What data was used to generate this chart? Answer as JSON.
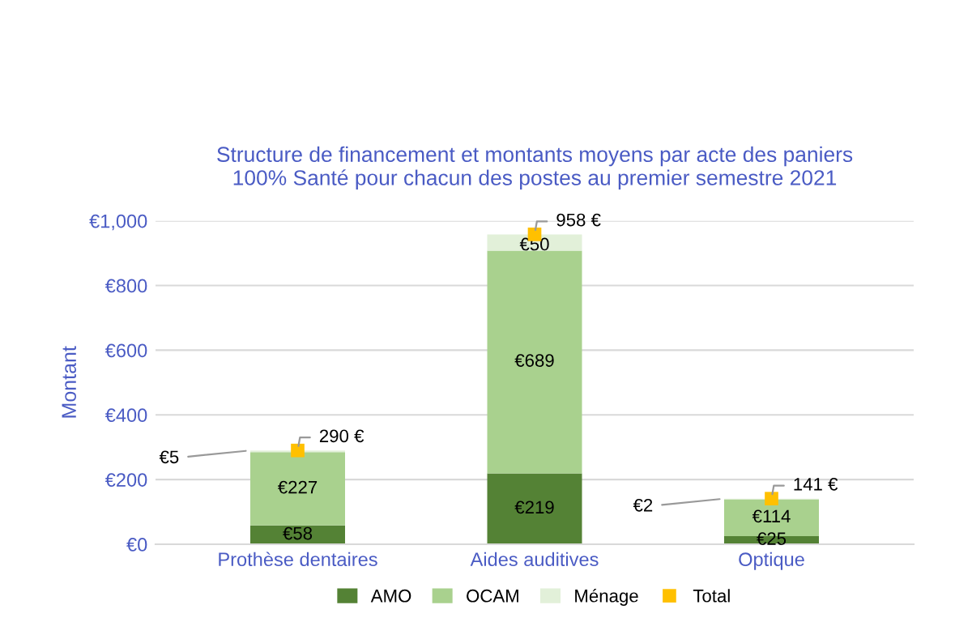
{
  "chart_data": {
    "type": "bar",
    "stacked": true,
    "title": "Structure de financement et montants moyens par acte des paniers\n100% Santé pour chacun des postes au premier semestre 2021",
    "ylabel": "Montant",
    "categories": [
      "Prothèse dentaires",
      "Aides auditives",
      "Optique"
    ],
    "series": [
      {
        "name": "AMO",
        "color": "#548235",
        "values": [
          58,
          219,
          25
        ],
        "value_labels": [
          "€58",
          "€219",
          "€25"
        ]
      },
      {
        "name": "OCAM",
        "color": "#a9d18e",
        "values": [
          227,
          689,
          114
        ],
        "value_labels": [
          "€227",
          "€689",
          "€114"
        ]
      },
      {
        "name": "Ménage",
        "color": "#e2f0d9",
        "values": [
          5,
          50,
          2
        ],
        "value_labels": [
          "€5",
          "€50",
          "€2"
        ]
      },
      {
        "name": "Total",
        "type": "scatter",
        "marker": "square",
        "color": "#ffc000",
        "values": [
          290,
          958,
          141
        ],
        "value_labels": [
          "290 €",
          "958 €",
          "141 €"
        ]
      }
    ],
    "ylim": [
      0,
      1000
    ],
    "yticks": [
      {
        "value": 0,
        "label": "€0"
      },
      {
        "value": 200,
        "label": "€200"
      },
      {
        "value": 400,
        "label": "€400"
      },
      {
        "value": 600,
        "label": "€600"
      },
      {
        "value": 800,
        "label": "€800"
      },
      {
        "value": 1000,
        "label": "€1,000"
      }
    ],
    "grid": "y",
    "legend": "bottom"
  }
}
